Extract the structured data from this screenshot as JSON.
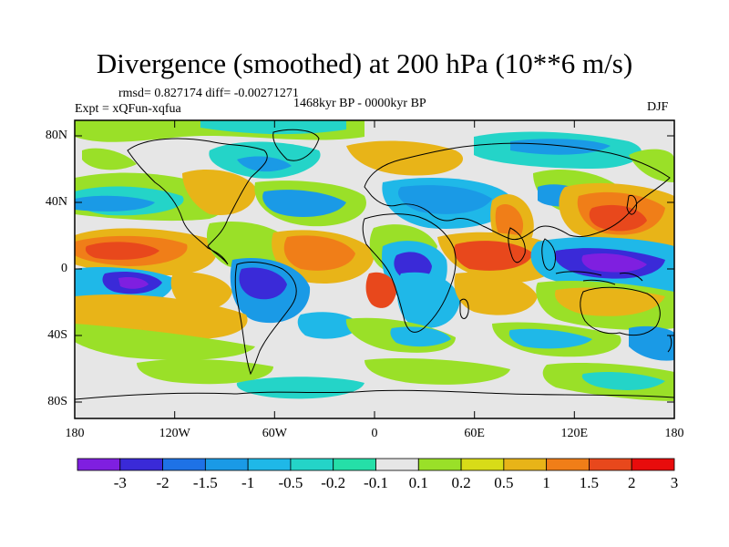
{
  "figure": {
    "title": "Divergence (smoothed) at 200 hPa (10**6 m/s)",
    "stats": "rmsd= 0.827174 diff= -0.00271271",
    "experiment": "Expt = xQFun-xqfua",
    "period": "1468kyr BP - 0000kyr BP",
    "season": "DJF"
  },
  "axes": {
    "x_labels": [
      "180",
      "120W",
      "60W",
      "0",
      "60E",
      "120E",
      "180"
    ],
    "y_labels": [
      "80N",
      "40N",
      "0",
      "40S",
      "80S"
    ]
  },
  "colorbar": {
    "labels": [
      "-3",
      "-2",
      "-1.5",
      "-1",
      "-0.5",
      "-0.2",
      "-0.1",
      "0.1",
      "0.2",
      "0.5",
      "1",
      "1.5",
      "2",
      "3"
    ],
    "colors": [
      "#7f1fe0",
      "#3a2ad8",
      "#1e72e6",
      "#1a9ae6",
      "#1fb8e8",
      "#24d4c8",
      "#25dfa8",
      "#e6e6e6",
      "#9ae028",
      "#d8dc18",
      "#e8b418",
      "#f07e18",
      "#e8481c",
      "#e80c0c"
    ]
  },
  "colors": {
    "background": "#e6e6e6",
    "neg_strong": "#3a2ad8",
    "neg_mid": "#1a9ae6",
    "neg_weak": "#24d4c8",
    "pos_weak": "#9ae028",
    "pos_mid": "#e8b418",
    "pos_strong": "#e8481c"
  }
}
